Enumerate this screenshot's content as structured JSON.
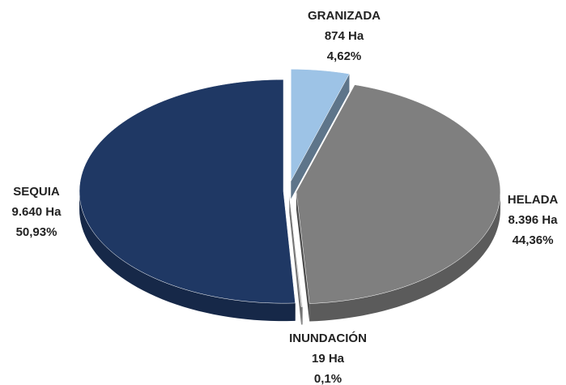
{
  "chart_data": {
    "type": "pie",
    "style": "3d",
    "categories": [
      "GRANIZADA",
      "HELADA",
      "INUNDACIÓN",
      "SEQUIA"
    ],
    "values": [
      4.62,
      44.36,
      0.1,
      50.93
    ],
    "value_labels": [
      "4,62%",
      "44,36%",
      "0,1%",
      "50,93%"
    ],
    "areas": [
      874,
      8396,
      19,
      9640
    ],
    "area_labels": [
      "874 Ha",
      "8.396 Ha",
      "19 Ha",
      "9.640 Ha"
    ],
    "colors": [
      "#9dc3e6",
      "#7f7f7f",
      "#bfbfbf",
      "#1f3864"
    ]
  }
}
